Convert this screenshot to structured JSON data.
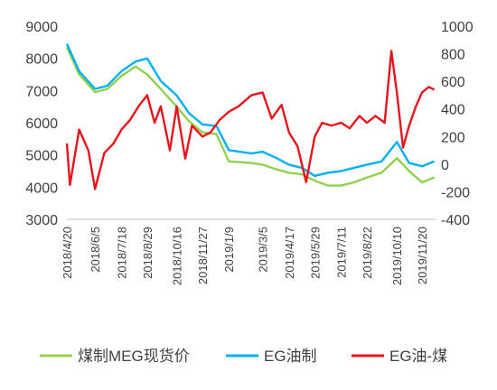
{
  "chart_data": {
    "type": "line",
    "title": "",
    "xlabel": "",
    "ylabel": "",
    "x_ticks": [
      "2018/4/20",
      "2018/6/5",
      "2018/7/18",
      "2018/8/29",
      "2018/10/16",
      "2018/11/27",
      "2019/1/9",
      "2019/3/5",
      "2019/4/17",
      "2019/5/29",
      "2019/7/11",
      "2019/8/22",
      "2019/10/10",
      "2019/11/20"
    ],
    "y_left": {
      "ylim": [
        3000,
        9000
      ],
      "ticks": [
        "3000",
        "4000",
        "5000",
        "6000",
        "7000",
        "8000",
        "9000"
      ]
    },
    "y_right": {
      "ylim": [
        -400,
        1000
      ],
      "ticks": [
        "-400",
        "-200",
        "0",
        "200",
        "400",
        "600",
        "800",
        "1000"
      ]
    },
    "grid": false,
    "legend_position": "bottom",
    "series": [
      {
        "name": "煤制MEG现货价",
        "axis": "left",
        "color": "#92D050",
        "x": [
          "2018/4/20",
          "2018/5/10",
          "2018/6/5",
          "2018/6/25",
          "2018/7/18",
          "2018/8/10",
          "2018/8/29",
          "2018/9/20",
          "2018/10/16",
          "2018/11/5",
          "2018/11/27",
          "2018/12/20",
          "2019/1/9",
          "2019/2/15",
          "2019/3/5",
          "2019/3/28",
          "2019/4/17",
          "2019/5/8",
          "2019/5/29",
          "2019/6/20",
          "2019/7/11",
          "2019/8/1",
          "2019/8/22",
          "2019/9/15",
          "2019/10/10",
          "2019/10/30",
          "2019/11/20",
          "2019/12/10"
        ],
        "y": [
          8350,
          7500,
          6950,
          7050,
          7450,
          7750,
          7500,
          7050,
          6500,
          6050,
          5700,
          5650,
          4800,
          4750,
          4700,
          4550,
          4450,
          4400,
          4200,
          4050,
          4050,
          4150,
          4300,
          4450,
          4900,
          4500,
          4150,
          4300
        ]
      },
      {
        "name": "EG油制",
        "axis": "left",
        "color": "#00B0F0",
        "x": [
          "2018/4/20",
          "2018/5/10",
          "2018/6/5",
          "2018/6/25",
          "2018/7/18",
          "2018/8/10",
          "2018/8/29",
          "2018/9/20",
          "2018/10/16",
          "2018/11/5",
          "2018/11/27",
          "2018/12/20",
          "2019/1/9",
          "2019/2/15",
          "2019/3/5",
          "2019/3/28",
          "2019/4/17",
          "2019/5/8",
          "2019/5/29",
          "2019/6/20",
          "2019/7/11",
          "2019/8/1",
          "2019/8/22",
          "2019/9/15",
          "2019/10/10",
          "2019/10/30",
          "2019/11/20",
          "2019/12/10"
        ],
        "y": [
          8450,
          7600,
          7050,
          7150,
          7600,
          7900,
          8000,
          7300,
          6850,
          6300,
          5950,
          5900,
          5150,
          5050,
          5100,
          4900,
          4700,
          4600,
          4350,
          4450,
          4500,
          4600,
          4700,
          4800,
          5400,
          4750,
          4650,
          4800
        ]
      },
      {
        "name": "EG油-煤",
        "axis": "right",
        "color": "#E8141B",
        "x": [
          "2018/4/20",
          "2018/4/25",
          "2018/5/10",
          "2018/5/25",
          "2018/6/5",
          "2018/6/20",
          "2018/7/5",
          "2018/7/18",
          "2018/8/1",
          "2018/8/15",
          "2018/8/29",
          "2018/9/10",
          "2018/9/20",
          "2018/10/5",
          "2018/10/16",
          "2018/10/30",
          "2018/11/10",
          "2018/11/27",
          "2018/12/10",
          "2018/12/25",
          "2019/1/9",
          "2019/1/25",
          "2019/2/15",
          "2019/3/5",
          "2019/3/20",
          "2019/4/5",
          "2019/4/17",
          "2019/5/1",
          "2019/5/15",
          "2019/5/29",
          "2019/6/10",
          "2019/6/25",
          "2019/7/11",
          "2019/7/25",
          "2019/8/10",
          "2019/8/22",
          "2019/9/5",
          "2019/9/20",
          "2019/10/1",
          "2019/10/10",
          "2019/10/20",
          "2019/10/30",
          "2019/11/10",
          "2019/11/20",
          "2019/12/1",
          "2019/12/10"
        ],
        "y": [
          150,
          -150,
          250,
          100,
          -180,
          80,
          150,
          250,
          320,
          420,
          500,
          300,
          420,
          100,
          420,
          40,
          280,
          200,
          230,
          320,
          380,
          420,
          500,
          520,
          330,
          430,
          230,
          130,
          -130,
          200,
          300,
          280,
          300,
          260,
          350,
          300,
          350,
          300,
          820,
          520,
          120,
          280,
          420,
          520,
          560,
          540
        ]
      }
    ]
  }
}
